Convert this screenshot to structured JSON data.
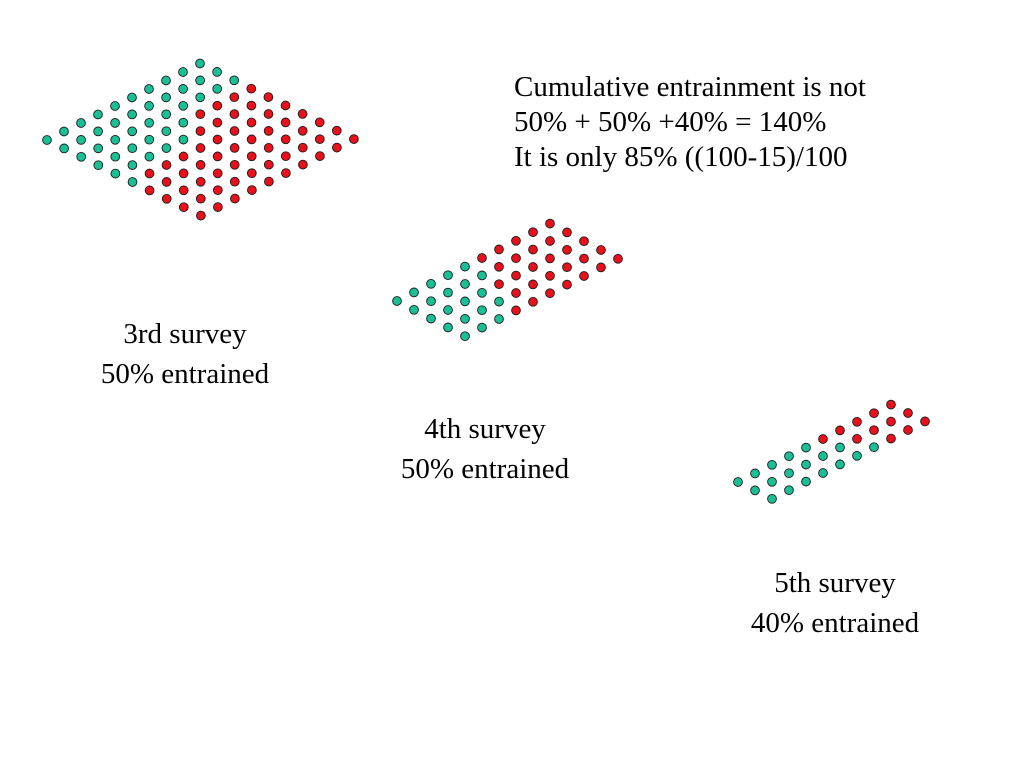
{
  "note": {
    "line1": "Cumulative entrainment is not",
    "line2": "50% + 50% +40% = 140%",
    "line3": "It is only 85% ((100-15)/100"
  },
  "surveys": [
    {
      "title": "3rd survey",
      "subtitle": "50% entrained"
    },
    {
      "title": "4th survey",
      "subtitle": "50% entrained"
    },
    {
      "title": "5th survey",
      "subtitle": "40% entrained"
    }
  ],
  "colors": {
    "not_entrained": "#1bbf95",
    "entrained": "#e8101a",
    "dot_outline": "#1a1a1a",
    "background": "#ffffff"
  }
}
